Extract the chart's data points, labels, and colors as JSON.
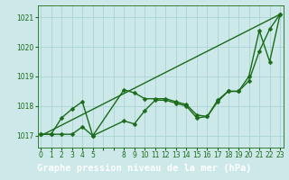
{
  "bg_color": "#cce8e8",
  "grid_color": "#aad4d4",
  "line_color": "#1a6b1a",
  "xlabel": "Graphe pression niveau de la mer (hPa)",
  "xlabel_bg": "#2d7a2d",
  "xlim": [
    -0.3,
    23.3
  ],
  "ylim": [
    1016.6,
    1021.4
  ],
  "yticks": [
    1017,
    1018,
    1019,
    1020,
    1021
  ],
  "xtick_positions": [
    0,
    1,
    2,
    3,
    4,
    5,
    6,
    7,
    8,
    9,
    10,
    11,
    12,
    13,
    14,
    15,
    16,
    17,
    18,
    19,
    20,
    21,
    22,
    23
  ],
  "xtick_labels": [
    "0",
    "1",
    "2",
    "3",
    "4",
    "5",
    "",
    "",
    "8",
    "9",
    "10",
    "11",
    "12",
    "13",
    "14",
    "15",
    "16",
    "17",
    "18",
    "19",
    "20",
    "21",
    "22",
    "23"
  ],
  "line1_x": [
    0,
    1,
    2,
    3,
    4,
    5,
    8,
    9,
    10,
    11,
    12,
    13,
    14,
    15,
    16,
    17,
    18,
    19,
    20,
    21,
    22,
    23
  ],
  "line1_y": [
    1017.05,
    1017.05,
    1017.6,
    1017.9,
    1018.15,
    1017.0,
    1018.55,
    1018.45,
    1018.25,
    1018.25,
    1018.25,
    1018.15,
    1018.05,
    1017.7,
    1017.65,
    1018.2,
    1018.5,
    1018.5,
    1019.0,
    1020.55,
    1019.5,
    1021.1
  ],
  "line2_x": [
    0,
    1,
    2,
    3,
    4,
    5,
    8,
    9,
    10,
    11,
    12,
    13,
    14,
    15,
    16,
    17,
    18,
    19,
    20,
    21,
    22,
    23
  ],
  "line2_y": [
    1017.05,
    1017.05,
    1017.05,
    1017.05,
    1017.3,
    1017.0,
    1017.5,
    1017.4,
    1017.85,
    1018.2,
    1018.2,
    1018.1,
    1018.0,
    1017.6,
    1017.65,
    1018.15,
    1018.5,
    1018.5,
    1018.85,
    1019.85,
    1020.6,
    1021.1
  ],
  "line3_x": [
    0,
    23
  ],
  "line3_y": [
    1017.0,
    1021.1
  ],
  "markersize": 2.5,
  "linewidth": 1.0,
  "tick_fontsize": 5.5,
  "xlabel_fontsize": 7.5
}
